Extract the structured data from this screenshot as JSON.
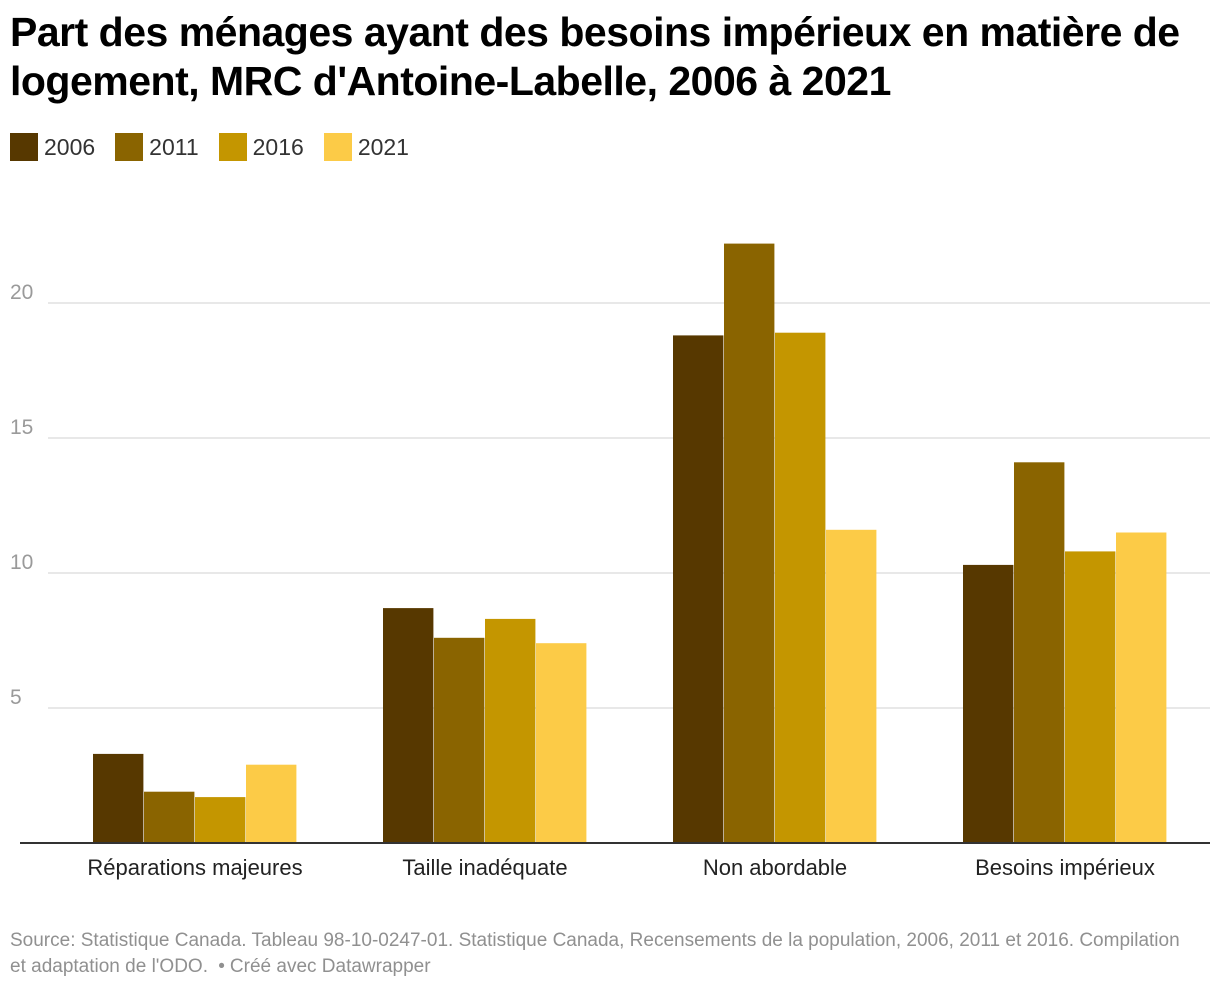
{
  "title": "Part des ménages ayant des besoins impérieux en matière de logement, MRC d'Antoine-Labelle, 2006 à 2021",
  "chart_data": {
    "type": "bar",
    "title": "Part des ménages ayant des besoins impérieux en matière de logement, MRC d'Antoine-Labelle, 2006 à 2021",
    "xlabel": "",
    "ylabel": "",
    "categories": [
      "Réparations majeures",
      "Taille inadéquate",
      "Non abordable",
      "Besoins impérieux"
    ],
    "series": [
      {
        "name": "2006",
        "color": "#573800",
        "values": [
          3.3,
          8.7,
          18.8,
          10.3
        ]
      },
      {
        "name": "2011",
        "color": "#8a6400",
        "values": [
          1.9,
          7.6,
          22.2,
          14.1
        ]
      },
      {
        "name": "2016",
        "color": "#c49600",
        "values": [
          1.7,
          8.3,
          18.9,
          10.8
        ]
      },
      {
        "name": "2021",
        "color": "#fccb47",
        "values": [
          2.9,
          7.4,
          11.6,
          11.5
        ]
      }
    ],
    "yticks": [
      5,
      10,
      15,
      20
    ],
    "ylim": [
      0,
      23
    ],
    "grid": true,
    "legend": "top-left"
  },
  "source": {
    "text": "Source: Statistique Canada. Tableau 98-10-0247-01. Statistique Canada, Recensements de la population, 2006, 2011 et 2016. Compilation et adaptation de l'ODO.",
    "separator": "•",
    "credit": "Créé avec Datawrapper"
  }
}
